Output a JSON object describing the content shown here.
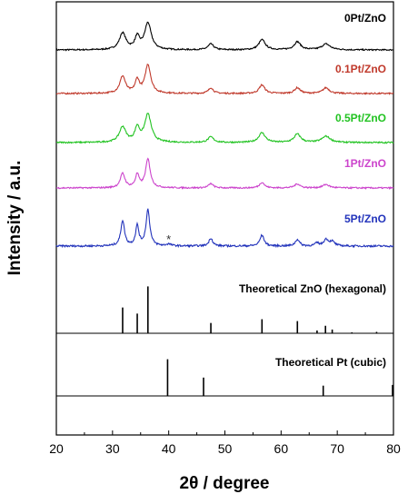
{
  "chart_data": {
    "type": "line",
    "xlabel": "2θ / degree",
    "ylabel": "Intensity / a.u.",
    "xlim": [
      20,
      80
    ],
    "x_ticks": [
      "20",
      "30",
      "40",
      "50",
      "60",
      "70",
      "80"
    ],
    "grid": false,
    "legend": "inline labels at right of each trace",
    "annotation": "*",
    "annotation_x": 40,
    "series": [
      {
        "name": "0Pt/ZnO",
        "color": "#000000",
        "amp": 0.7,
        "peaks": [
          [
            31.8,
            0.62,
            0.7
          ],
          [
            34.4,
            0.45,
            0.5
          ],
          [
            36.3,
            1.0,
            0.7
          ],
          [
            47.5,
            0.22,
            0.6
          ],
          [
            56.6,
            0.38,
            0.7
          ],
          [
            62.9,
            0.3,
            0.7
          ],
          [
            68.0,
            0.22,
            0.9
          ]
        ]
      },
      {
        "name": "0.1Pt/ZnO",
        "color": "#c0392b",
        "amp": 0.7,
        "peaks": [
          [
            31.8,
            0.6,
            0.6
          ],
          [
            34.4,
            0.45,
            0.45
          ],
          [
            36.3,
            1.0,
            0.6
          ],
          [
            47.5,
            0.2,
            0.5
          ],
          [
            56.6,
            0.3,
            0.6
          ],
          [
            62.9,
            0.2,
            0.6
          ],
          [
            68.0,
            0.2,
            0.7
          ]
        ]
      },
      {
        "name": "0.5Pt/ZnO",
        "color": "#22c322",
        "amp": 0.7,
        "peaks": [
          [
            31.8,
            0.55,
            0.7
          ],
          [
            34.4,
            0.5,
            0.5
          ],
          [
            36.3,
            1.0,
            0.7
          ],
          [
            47.5,
            0.2,
            0.6
          ],
          [
            56.6,
            0.35,
            0.7
          ],
          [
            62.9,
            0.3,
            0.7
          ],
          [
            68.0,
            0.22,
            0.9
          ]
        ]
      },
      {
        "name": "1Pt/ZnO",
        "color": "#cc44cc",
        "amp": 0.7,
        "peaks": [
          [
            31.8,
            0.5,
            0.5
          ],
          [
            34.4,
            0.45,
            0.4
          ],
          [
            36.3,
            1.0,
            0.5
          ],
          [
            47.5,
            0.15,
            0.5
          ],
          [
            56.6,
            0.2,
            0.5
          ],
          [
            62.9,
            0.14,
            0.6
          ],
          [
            68.0,
            0.12,
            0.7
          ]
        ]
      },
      {
        "name": "5Pt/ZnO",
        "color": "#2233bb",
        "amp": 0.7,
        "peaks": [
          [
            31.8,
            0.7,
            0.4
          ],
          [
            34.4,
            0.55,
            0.35
          ],
          [
            36.3,
            1.0,
            0.4
          ],
          [
            40.0,
            0.05,
            0.5
          ],
          [
            47.5,
            0.22,
            0.4
          ],
          [
            56.6,
            0.3,
            0.45
          ],
          [
            62.9,
            0.18,
            0.45
          ],
          [
            66.4,
            0.08,
            0.4
          ],
          [
            68.0,
            0.18,
            0.5
          ],
          [
            69.1,
            0.12,
            0.5
          ]
        ]
      },
      {
        "name": "Theoretical ZnO (hexagonal)",
        "color": "#000000",
        "amp": 0.86,
        "sticks": [
          [
            31.8,
            0.55
          ],
          [
            34.4,
            0.42
          ],
          [
            36.3,
            1.0
          ],
          [
            47.5,
            0.22
          ],
          [
            56.6,
            0.3
          ],
          [
            62.9,
            0.26
          ],
          [
            66.4,
            0.06
          ],
          [
            67.9,
            0.16
          ],
          [
            69.1,
            0.08
          ],
          [
            72.6,
            0.02
          ],
          [
            77.0,
            0.03
          ]
        ]
      },
      {
        "name": "Theoretical Pt (cubic)",
        "color": "#000000",
        "amp": 0.86,
        "sticks": [
          [
            39.8,
            1.0
          ],
          [
            46.2,
            0.5
          ],
          [
            67.5,
            0.28
          ],
          [
            81.3,
            0.3
          ]
        ]
      }
    ]
  }
}
